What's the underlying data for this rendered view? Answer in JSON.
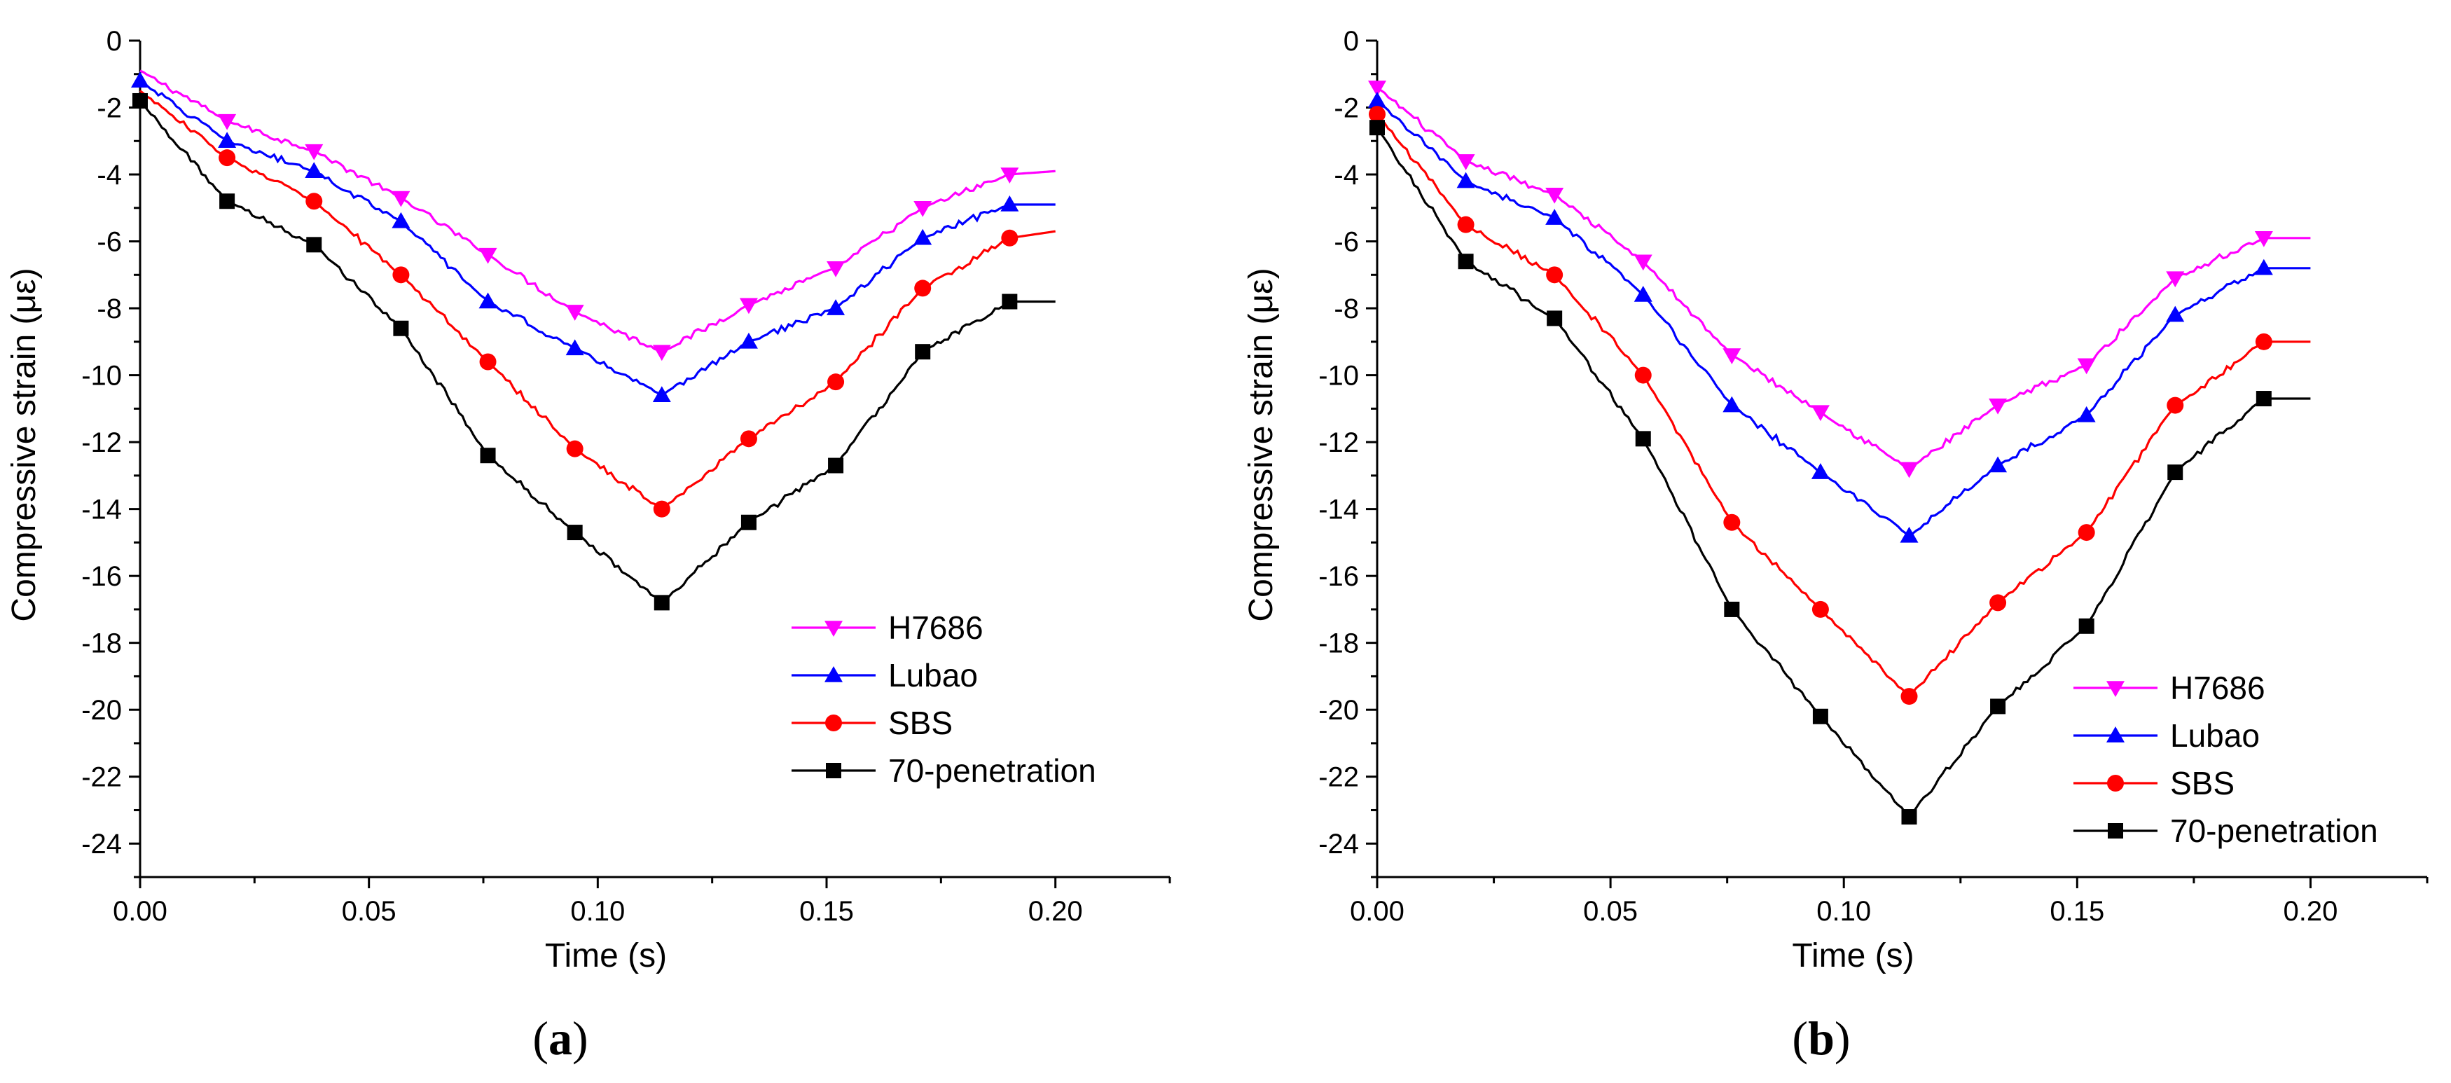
{
  "chart_data": [
    {
      "type": "line",
      "panel_label": "a",
      "xlabel": "Time (s)",
      "ylabel": "Compressive strain (με)",
      "xlim": [
        0,
        0.225
      ],
      "ylim": [
        -25,
        0
      ],
      "x_ticks": [
        "0.00",
        "0.05",
        "0.10",
        "0.15",
        "0.20"
      ],
      "y_ticks": [
        "0",
        "-2",
        "-4",
        "-6",
        "-8",
        "-10",
        "-12",
        "-14",
        "-16",
        "-18",
        "-20",
        "-22",
        "-24"
      ],
      "legend_position": "lower-right",
      "series": [
        {
          "name": "H7686",
          "color": "#ff00ff",
          "marker": "triangle-down",
          "x": [
            0,
            0.019,
            0.038,
            0.057,
            0.076,
            0.095,
            0.114,
            0.133,
            0.152,
            0.171,
            0.19,
            0.2
          ],
          "y": [
            -0.9,
            -2.4,
            -3.3,
            -4.7,
            -6.4,
            -8.1,
            -9.3,
            -7.9,
            -6.8,
            -5.0,
            -4.0,
            -3.9
          ],
          "marker_x": [
            0.019,
            0.038,
            0.057,
            0.076,
            0.095,
            0.114,
            0.133,
            0.152,
            0.171,
            0.19
          ]
        },
        {
          "name": "Lubao",
          "color": "#0000ff",
          "marker": "triangle-up",
          "x": [
            0,
            0.019,
            0.038,
            0.057,
            0.076,
            0.095,
            0.114,
            0.133,
            0.152,
            0.171,
            0.19,
            0.2
          ],
          "y": [
            -1.2,
            -3.0,
            -3.9,
            -5.4,
            -7.8,
            -9.2,
            -10.6,
            -9.0,
            -8.0,
            -5.9,
            -4.9,
            -4.9
          ],
          "marker_x": [
            0.0,
            0.019,
            0.038,
            0.057,
            0.076,
            0.095,
            0.114,
            0.133,
            0.152,
            0.171,
            0.19
          ]
        },
        {
          "name": "SBS",
          "color": "#ff0000",
          "marker": "circle",
          "x": [
            0,
            0.019,
            0.038,
            0.057,
            0.076,
            0.095,
            0.114,
            0.133,
            0.152,
            0.171,
            0.19,
            0.2
          ],
          "y": [
            -1.5,
            -3.5,
            -4.8,
            -7.0,
            -9.6,
            -12.2,
            -14.0,
            -11.9,
            -10.2,
            -7.4,
            -5.9,
            -5.7
          ],
          "marker_x": [
            0.019,
            0.038,
            0.057,
            0.076,
            0.095,
            0.114,
            0.133,
            0.152,
            0.171,
            0.19
          ]
        },
        {
          "name": "70-penetration",
          "color": "#000000",
          "marker": "square",
          "x": [
            0,
            0.019,
            0.038,
            0.057,
            0.076,
            0.095,
            0.114,
            0.133,
            0.152,
            0.171,
            0.19,
            0.2
          ],
          "y": [
            -1.8,
            -4.8,
            -6.1,
            -8.6,
            -12.4,
            -14.7,
            -16.8,
            -14.4,
            -12.7,
            -9.3,
            -7.8,
            -7.8
          ],
          "marker_x": [
            0.0,
            0.019,
            0.038,
            0.057,
            0.076,
            0.095,
            0.114,
            0.133,
            0.152,
            0.171,
            0.19
          ]
        }
      ]
    },
    {
      "type": "line",
      "panel_label": "b",
      "xlabel": "Time (s)",
      "ylabel": "Compressive strain (με)",
      "xlim": [
        0,
        0.225
      ],
      "ylim": [
        -25,
        0
      ],
      "x_ticks": [
        "0.00",
        "0.05",
        "0.10",
        "0.15",
        "0.20"
      ],
      "y_ticks": [
        "0",
        "-2",
        "-4",
        "-6",
        "-8",
        "-10",
        "-12",
        "-14",
        "-16",
        "-18",
        "-20",
        "-22",
        "-24"
      ],
      "legend_position": "lower-right",
      "series": [
        {
          "name": "H7686",
          "color": "#ff00ff",
          "marker": "triangle-down",
          "x": [
            0,
            0.019,
            0.038,
            0.057,
            0.076,
            0.095,
            0.114,
            0.133,
            0.152,
            0.171,
            0.19,
            0.2
          ],
          "y": [
            -1.4,
            -3.6,
            -4.6,
            -6.6,
            -9.4,
            -11.1,
            -12.8,
            -10.9,
            -9.7,
            -7.1,
            -5.9,
            -5.9
          ],
          "marker_x": [
            0.0,
            0.019,
            0.038,
            0.057,
            0.076,
            0.095,
            0.114,
            0.133,
            0.152,
            0.171,
            0.19
          ]
        },
        {
          "name": "Lubao",
          "color": "#0000ff",
          "marker": "triangle-up",
          "x": [
            0,
            0.019,
            0.038,
            0.057,
            0.076,
            0.095,
            0.114,
            0.133,
            0.152,
            0.171,
            0.19,
            0.2
          ],
          "y": [
            -1.8,
            -4.2,
            -5.3,
            -7.6,
            -10.9,
            -12.9,
            -14.8,
            -12.7,
            -11.2,
            -8.2,
            -6.8,
            -6.8
          ],
          "marker_x": [
            0.0,
            0.019,
            0.038,
            0.057,
            0.076,
            0.095,
            0.114,
            0.133,
            0.152,
            0.171,
            0.19
          ]
        },
        {
          "name": "SBS",
          "color": "#ff0000",
          "marker": "circle",
          "x": [
            0,
            0.019,
            0.038,
            0.057,
            0.076,
            0.095,
            0.114,
            0.133,
            0.152,
            0.171,
            0.19,
            0.2
          ],
          "y": [
            -2.2,
            -5.5,
            -7.0,
            -10.0,
            -14.4,
            -17.0,
            -19.6,
            -16.8,
            -14.7,
            -10.9,
            -9.0,
            -9.0
          ],
          "marker_x": [
            0.0,
            0.019,
            0.038,
            0.057,
            0.076,
            0.095,
            0.114,
            0.133,
            0.152,
            0.171,
            0.19
          ]
        },
        {
          "name": "70-penetration",
          "color": "#000000",
          "marker": "square",
          "x": [
            0,
            0.019,
            0.038,
            0.057,
            0.076,
            0.095,
            0.114,
            0.133,
            0.152,
            0.171,
            0.19,
            0.2
          ],
          "y": [
            -2.6,
            -6.6,
            -8.3,
            -11.9,
            -17.0,
            -20.2,
            -23.2,
            -19.9,
            -17.5,
            -12.9,
            -10.7,
            -10.7
          ],
          "marker_x": [
            0.0,
            0.019,
            0.038,
            0.057,
            0.076,
            0.095,
            0.114,
            0.133,
            0.152,
            0.171,
            0.19
          ]
        }
      ]
    }
  ]
}
